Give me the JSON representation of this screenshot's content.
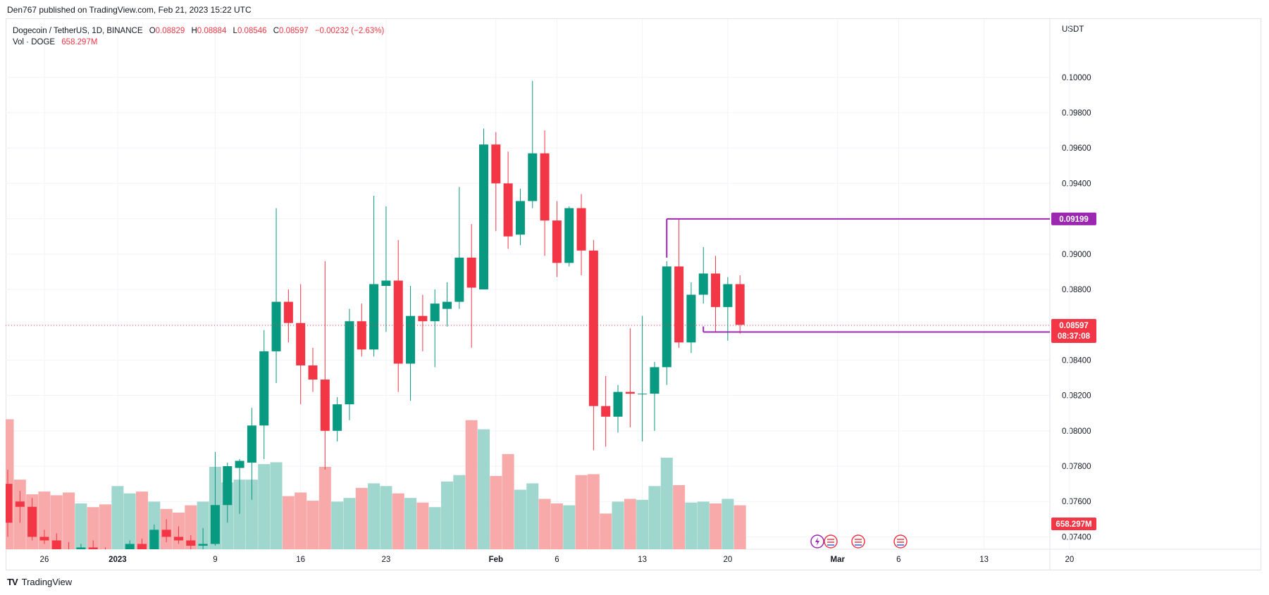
{
  "header": {
    "publisher_line": "Den767 published on TradingView.com, Feb 21, 2023 15:22 UTC"
  },
  "legend": {
    "symbol": "Dogecoin / TetherUS, 1D, BINANCE",
    "open_label": "O",
    "open": "0.08829",
    "high_label": "H",
    "high": "0.08884",
    "low_label": "L",
    "low": "0.08546",
    "close_label": "C",
    "close": "0.08597",
    "change": "−0.00232 (−2.63%)",
    "volume_label": "Vol · DOGE",
    "volume": "658.297M"
  },
  "footer": {
    "brand": "TradingView",
    "logo_mark": "TV"
  },
  "colors": {
    "up": "#089981",
    "down": "#f23645",
    "vol_up": "#9fd6cd",
    "vol_down": "#f7aaa9",
    "level_line": "#9c27b0",
    "price_tag": "#f23645",
    "volume_tag": "#f23645",
    "grid": "#f0f3fa"
  },
  "chart_data": {
    "type": "candlestick",
    "symbol": "Dogecoin / TetherUS",
    "interval": "1D",
    "exchange": "BINANCE",
    "price_axis": {
      "unit": "USDT",
      "range": [
        0.0733,
        0.1033
      ],
      "ticks": [
        "0.10000",
        "0.09800",
        "0.09600",
        "0.09400",
        "0.09200",
        "0.09000",
        "0.08800",
        "0.08600",
        "0.08400",
        "0.08200",
        "0.08000",
        "0.07800",
        "0.07600",
        "0.07400"
      ]
    },
    "time_axis": {
      "ticks": [
        "26",
        "2023",
        "9",
        "16",
        "23",
        "Feb",
        "6",
        "13",
        "20",
        "Mar",
        "6",
        "13",
        "20"
      ]
    },
    "last_price": "0.08597",
    "countdown": "08:37:08",
    "volume_readout": "658.297M",
    "horizontal_levels": [
      {
        "value": 0.09199,
        "label": "0.09199",
        "from_date": "Feb 15"
      },
      {
        "value": 0.08559,
        "label": "0.08559",
        "from_date": "Feb 18"
      }
    ],
    "candles": [
      {
        "d": "Dec 23",
        "o": 0.077,
        "h": 0.0778,
        "l": 0.074,
        "c": 0.0748
      },
      {
        "d": "Dec 24",
        "o": 0.076,
        "h": 0.0766,
        "l": 0.0748,
        "c": 0.0757
      },
      {
        "d": "Dec 25",
        "o": 0.0757,
        "h": 0.0762,
        "l": 0.0738,
        "c": 0.074
      },
      {
        "d": "Dec 26",
        "o": 0.074,
        "h": 0.0744,
        "l": 0.0736,
        "c": 0.0738
      },
      {
        "d": "Dec 27",
        "o": 0.0738,
        "h": 0.0742,
        "l": 0.0731,
        "c": 0.0733
      },
      {
        "d": "Dec 28",
        "o": 0.0733,
        "h": 0.0737,
        "l": 0.0722,
        "c": 0.0729
      },
      {
        "d": "Dec 29",
        "o": 0.0729,
        "h": 0.0736,
        "l": 0.0724,
        "c": 0.0734
      },
      {
        "d": "Dec 30",
        "o": 0.0734,
        "h": 0.0738,
        "l": 0.0728,
        "c": 0.0731
      },
      {
        "d": "Dec 31",
        "o": 0.0731,
        "h": 0.0734,
        "l": 0.0726,
        "c": 0.0728
      },
      {
        "d": "Jan 1",
        "o": 0.0728,
        "h": 0.0733,
        "l": 0.0725,
        "c": 0.0731
      },
      {
        "d": "Jan 2",
        "o": 0.0731,
        "h": 0.0738,
        "l": 0.0729,
        "c": 0.0736
      },
      {
        "d": "Jan 3",
        "o": 0.0736,
        "h": 0.0739,
        "l": 0.0731,
        "c": 0.0733
      },
      {
        "d": "Jan 4",
        "o": 0.0733,
        "h": 0.0747,
        "l": 0.0732,
        "c": 0.0744
      },
      {
        "d": "Jan 5",
        "o": 0.0744,
        "h": 0.075,
        "l": 0.0737,
        "c": 0.074
      },
      {
        "d": "Jan 6",
        "o": 0.074,
        "h": 0.0746,
        "l": 0.0736,
        "c": 0.0738
      },
      {
        "d": "Jan 7",
        "o": 0.0738,
        "h": 0.0741,
        "l": 0.0733,
        "c": 0.0735
      },
      {
        "d": "Jan 8",
        "o": 0.0735,
        "h": 0.0745,
        "l": 0.0733,
        "c": 0.0736
      },
      {
        "d": "Jan 9",
        "o": 0.0736,
        "h": 0.0788,
        "l": 0.0735,
        "c": 0.0758
      },
      {
        "d": "Jan 10",
        "o": 0.0758,
        "h": 0.0782,
        "l": 0.0748,
        "c": 0.078
      },
      {
        "d": "Jan 11",
        "o": 0.0779,
        "h": 0.0784,
        "l": 0.0753,
        "c": 0.0783
      },
      {
        "d": "Jan 12",
        "o": 0.0782,
        "h": 0.0813,
        "l": 0.0761,
        "c": 0.0803
      },
      {
        "d": "Jan 13",
        "o": 0.0803,
        "h": 0.0857,
        "l": 0.0784,
        "c": 0.0845
      },
      {
        "d": "Jan 14",
        "o": 0.0845,
        "h": 0.0926,
        "l": 0.0827,
        "c": 0.0873
      },
      {
        "d": "Jan 15",
        "o": 0.0873,
        "h": 0.088,
        "l": 0.085,
        "c": 0.0861
      },
      {
        "d": "Jan 16",
        "o": 0.0861,
        "h": 0.0883,
        "l": 0.0815,
        "c": 0.0837
      },
      {
        "d": "Jan 17",
        "o": 0.0837,
        "h": 0.0847,
        "l": 0.0822,
        "c": 0.0829
      },
      {
        "d": "Jan 18",
        "o": 0.0829,
        "h": 0.0896,
        "l": 0.0778,
        "c": 0.08
      },
      {
        "d": "Jan 19",
        "o": 0.08,
        "h": 0.0819,
        "l": 0.0794,
        "c": 0.0815
      },
      {
        "d": "Jan 20",
        "o": 0.0815,
        "h": 0.0869,
        "l": 0.0806,
        "c": 0.0862
      },
      {
        "d": "Jan 21",
        "o": 0.0862,
        "h": 0.0872,
        "l": 0.0842,
        "c": 0.0846
      },
      {
        "d": "Jan 22",
        "o": 0.0846,
        "h": 0.0933,
        "l": 0.0842,
        "c": 0.0883
      },
      {
        "d": "Jan 23",
        "o": 0.0882,
        "h": 0.0927,
        "l": 0.0856,
        "c": 0.0885
      },
      {
        "d": "Jan 24",
        "o": 0.0885,
        "h": 0.0908,
        "l": 0.0822,
        "c": 0.0838
      },
      {
        "d": "Jan 25",
        "o": 0.0838,
        "h": 0.0882,
        "l": 0.0817,
        "c": 0.0865
      },
      {
        "d": "Jan 26",
        "o": 0.0865,
        "h": 0.0877,
        "l": 0.0845,
        "c": 0.0862
      },
      {
        "d": "Jan 27",
        "o": 0.0862,
        "h": 0.088,
        "l": 0.0836,
        "c": 0.0872
      },
      {
        "d": "Jan 28",
        "o": 0.0869,
        "h": 0.0884,
        "l": 0.0859,
        "c": 0.0873
      },
      {
        "d": "Jan 29",
        "o": 0.0873,
        "h": 0.0938,
        "l": 0.0869,
        "c": 0.0898
      },
      {
        "d": "Jan 30",
        "o": 0.0898,
        "h": 0.0917,
        "l": 0.0847,
        "c": 0.0881
      },
      {
        "d": "Jan 31",
        "o": 0.088,
        "h": 0.0971,
        "l": 0.088,
        "c": 0.0962
      },
      {
        "d": "Feb 1",
        "o": 0.0962,
        "h": 0.0969,
        "l": 0.0913,
        "c": 0.094
      },
      {
        "d": "Feb 2",
        "o": 0.094,
        "h": 0.0958,
        "l": 0.0903,
        "c": 0.091
      },
      {
        "d": "Feb 3",
        "o": 0.0911,
        "h": 0.0937,
        "l": 0.0905,
        "c": 0.093
      },
      {
        "d": "Feb 4",
        "o": 0.093,
        "h": 0.0998,
        "l": 0.0926,
        "c": 0.0957
      },
      {
        "d": "Feb 5",
        "o": 0.0957,
        "h": 0.097,
        "l": 0.0899,
        "c": 0.0919
      },
      {
        "d": "Feb 6",
        "o": 0.0919,
        "h": 0.093,
        "l": 0.0887,
        "c": 0.0895
      },
      {
        "d": "Feb 7",
        "o": 0.0895,
        "h": 0.0927,
        "l": 0.0893,
        "c": 0.0926
      },
      {
        "d": "Feb 8",
        "o": 0.0926,
        "h": 0.0934,
        "l": 0.0888,
        "c": 0.0902
      },
      {
        "d": "Feb 9",
        "o": 0.0902,
        "h": 0.0908,
        "l": 0.0789,
        "c": 0.0814
      },
      {
        "d": "Feb 10",
        "o": 0.0814,
        "h": 0.0831,
        "l": 0.0791,
        "c": 0.0808
      },
      {
        "d": "Feb 11",
        "o": 0.0808,
        "h": 0.0826,
        "l": 0.0799,
        "c": 0.0822
      },
      {
        "d": "Feb 12",
        "o": 0.0822,
        "h": 0.0858,
        "l": 0.0802,
        "c": 0.0821
      },
      {
        "d": "Feb 13",
        "o": 0.0821,
        "h": 0.0865,
        "l": 0.0794,
        "c": 0.0821
      },
      {
        "d": "Feb 14",
        "o": 0.0821,
        "h": 0.0839,
        "l": 0.08,
        "c": 0.0836
      },
      {
        "d": "Feb 15",
        "o": 0.0836,
        "h": 0.0896,
        "l": 0.0826,
        "c": 0.0893
      },
      {
        "d": "Feb 16",
        "o": 0.0893,
        "h": 0.092,
        "l": 0.0847,
        "c": 0.085
      },
      {
        "d": "Feb 17",
        "o": 0.085,
        "h": 0.0884,
        "l": 0.0844,
        "c": 0.0877
      },
      {
        "d": "Feb 18",
        "o": 0.0877,
        "h": 0.0904,
        "l": 0.0872,
        "c": 0.0889
      },
      {
        "d": "Feb 19",
        "o": 0.0889,
        "h": 0.0899,
        "l": 0.0856,
        "c": 0.087
      },
      {
        "d": "Feb 20",
        "o": 0.087,
        "h": 0.0887,
        "l": 0.0851,
        "c": 0.0883
      },
      {
        "d": "Feb 21",
        "o": 0.0883,
        "h": 0.0888,
        "l": 0.0855,
        "c": 0.086
      }
    ],
    "volumes_million": [
      1420,
      760,
      600,
      630,
      590,
      620,
      500,
      460,
      490,
      690,
      610,
      630,
      520,
      440,
      400,
      480,
      520,
      900,
      730,
      760,
      760,
      930,
      950,
      580,
      620,
      530,
      900,
      520,
      560,
      670,
      720,
      690,
      610,
      560,
      510,
      460,
      740,
      810,
      1410,
      1310,
      800,
      1040,
      650,
      720,
      550,
      500,
      480,
      810,
      820,
      390,
      520,
      550,
      540,
      690,
      1000,
      700,
      510,
      520,
      500,
      550,
      480
    ]
  }
}
